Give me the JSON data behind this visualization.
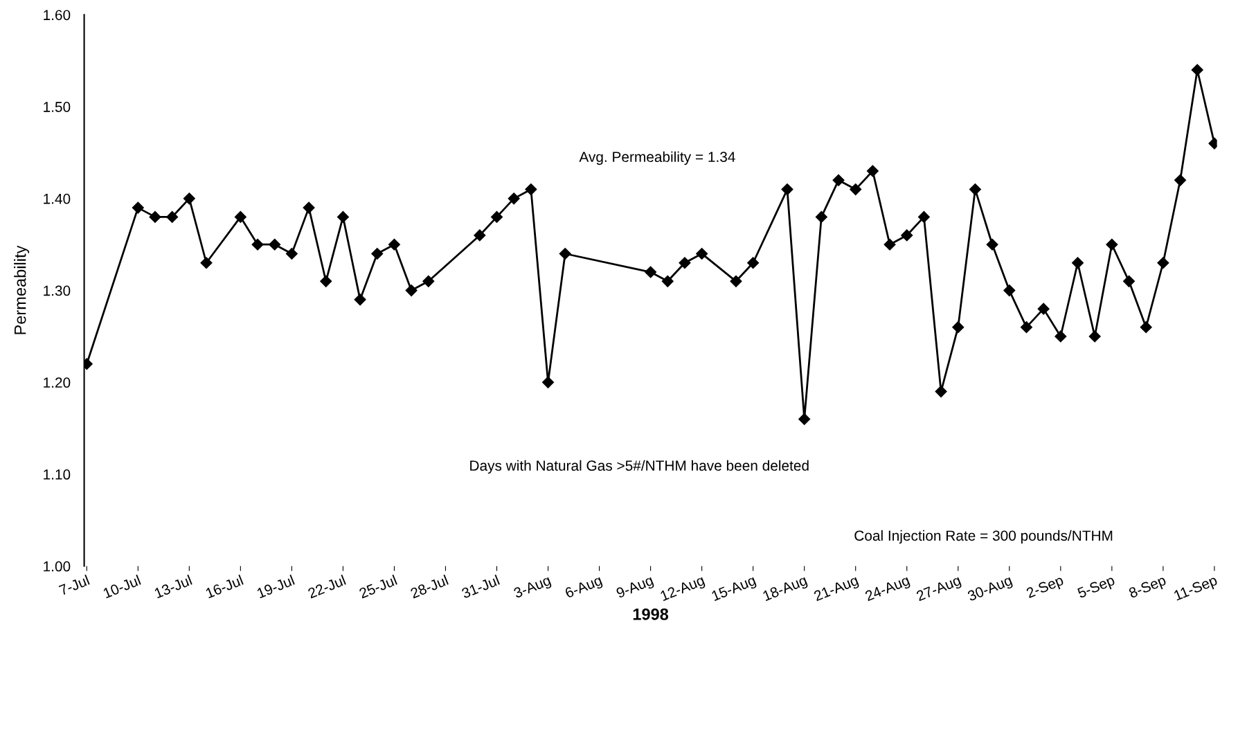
{
  "chart_data": {
    "type": "line",
    "xlabel": "1998",
    "ylabel": "Permeability",
    "annotations": [
      "Avg. Permeability = 1.34",
      "Days with Natural Gas >5#/NTHM have been deleted",
      "Coal Injection Rate = 300 pounds/NTHM"
    ],
    "x": [
      "1998-07-07",
      "1998-07-10",
      "1998-07-11",
      "1998-07-12",
      "1998-07-13",
      "1998-07-14",
      "1998-07-16",
      "1998-07-17",
      "1998-07-18",
      "1998-07-19",
      "1998-07-20",
      "1998-07-21",
      "1998-07-22",
      "1998-07-23",
      "1998-07-24",
      "1998-07-25",
      "1998-07-26",
      "1998-07-27",
      "1998-07-30",
      "1998-07-31",
      "1998-08-01",
      "1998-08-02",
      "1998-08-03",
      "1998-08-04",
      "1998-08-09",
      "1998-08-10",
      "1998-08-11",
      "1998-08-12",
      "1998-08-14",
      "1998-08-15",
      "1998-08-17",
      "1998-08-18",
      "1998-08-19",
      "1998-08-20",
      "1998-08-21",
      "1998-08-22",
      "1998-08-23",
      "1998-08-24",
      "1998-08-25",
      "1998-08-26",
      "1998-08-27",
      "1998-08-28",
      "1998-08-29",
      "1998-08-30",
      "1998-08-31",
      "1998-09-01",
      "1998-09-02",
      "1998-09-03",
      "1998-09-04",
      "1998-09-05",
      "1998-09-06",
      "1998-09-07",
      "1998-09-08",
      "1998-09-09",
      "1998-09-10",
      "1998-09-11"
    ],
    "series": [
      {
        "color": "#000000",
        "values": [
          1.22,
          1.39,
          1.38,
          1.38,
          1.4,
          1.33,
          1.38,
          1.35,
          1.35,
          1.34,
          1.39,
          1.31,
          1.38,
          1.29,
          1.34,
          1.35,
          1.3,
          1.31,
          1.36,
          1.38,
          1.4,
          1.41,
          1.2,
          1.34,
          1.32,
          1.31,
          1.33,
          1.34,
          1.31,
          1.33,
          1.41,
          1.16,
          1.38,
          1.42,
          1.41,
          1.43,
          1.35,
          1.36,
          1.38,
          1.19,
          1.26,
          1.41,
          1.35,
          1.3,
          1.26,
          1.28,
          1.25,
          1.33,
          1.25,
          1.35,
          1.31,
          1.26,
          1.33,
          1.42,
          1.54,
          1.46
        ]
      }
    ],
    "xlim": [
      "1998-07-07",
      "1998-09-11"
    ],
    "xticks": [
      {
        "value": "1998-07-07",
        "label": "7-Jul"
      },
      {
        "value": "1998-07-10",
        "label": "10-Jul"
      },
      {
        "value": "1998-07-13",
        "label": "13-Jul"
      },
      {
        "value": "1998-07-16",
        "label": "16-Jul"
      },
      {
        "value": "1998-07-19",
        "label": "19-Jul"
      },
      {
        "value": "1998-07-22",
        "label": "22-Jul"
      },
      {
        "value": "1998-07-25",
        "label": "25-Jul"
      },
      {
        "value": "1998-07-28",
        "label": "28-Jul"
      },
      {
        "value": "1998-07-31",
        "label": "31-Jul"
      },
      {
        "value": "1998-08-03",
        "label": "3-Aug"
      },
      {
        "value": "1998-08-06",
        "label": "6-Aug"
      },
      {
        "value": "1998-08-09",
        "label": "9-Aug"
      },
      {
        "value": "1998-08-12",
        "label": "12-Aug"
      },
      {
        "value": "1998-08-15",
        "label": "15-Aug"
      },
      {
        "value": "1998-08-18",
        "label": "18-Aug"
      },
      {
        "value": "1998-08-21",
        "label": "21-Aug"
      },
      {
        "value": "1998-08-24",
        "label": "24-Aug"
      },
      {
        "value": "1998-08-27",
        "label": "27-Aug"
      },
      {
        "value": "1998-08-30",
        "label": "30-Aug"
      },
      {
        "value": "1998-09-02",
        "label": "2-Sep"
      },
      {
        "value": "1998-09-05",
        "label": "5-Sep"
      },
      {
        "value": "1998-09-08",
        "label": "8-Sep"
      },
      {
        "value": "1998-09-11",
        "label": "11-Sep"
      }
    ],
    "ylim": [
      1.0,
      1.6
    ],
    "yticks": [
      {
        "value": 1.0,
        "label": "1.00"
      },
      {
        "value": 1.1,
        "label": "1.10"
      },
      {
        "value": 1.2,
        "label": "1.20"
      },
      {
        "value": 1.3,
        "label": "1.30"
      },
      {
        "value": 1.4,
        "label": "1.40"
      },
      {
        "value": 1.5,
        "label": "1.50"
      },
      {
        "value": 1.6,
        "label": "1.60"
      }
    ],
    "marker": "diamond",
    "line_style": "solid",
    "grid": false,
    "legend": false
  }
}
